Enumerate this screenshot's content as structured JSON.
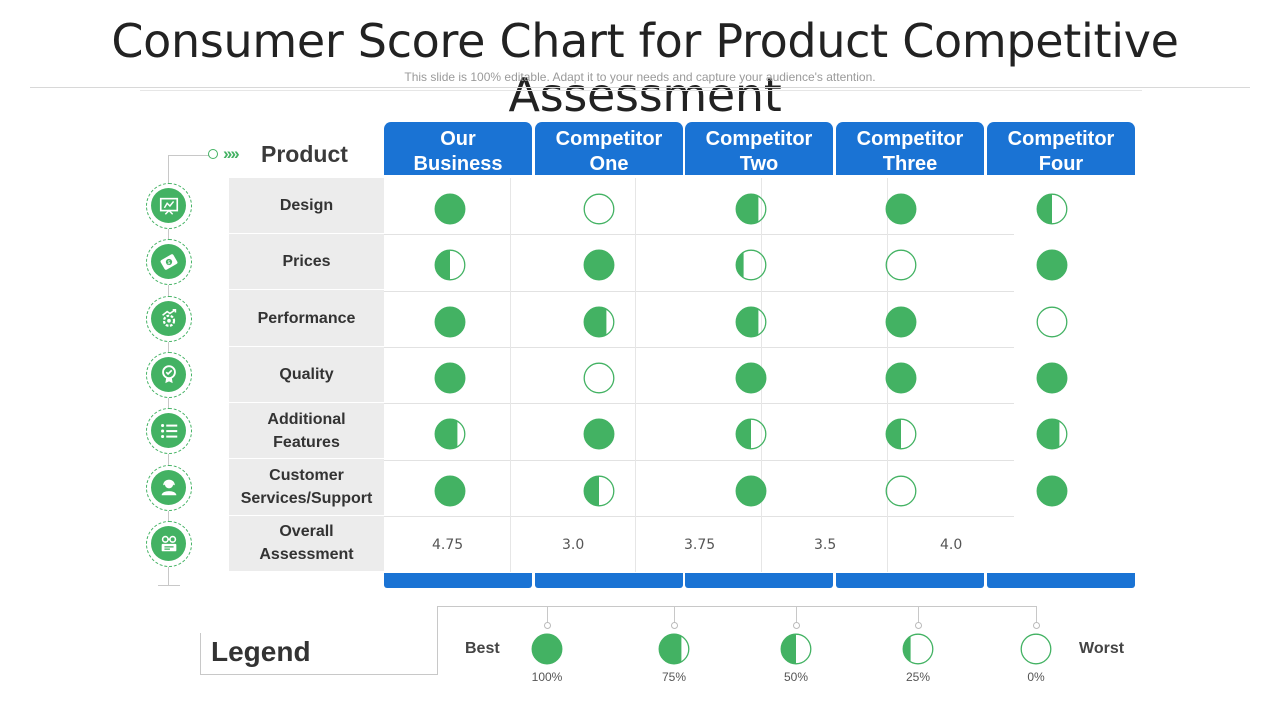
{
  "title": "Consumer Score Chart for Product Competitive Assessment",
  "subtitle": "This slide is 100% editable. Adapt it to your needs and capture your audience's attention.",
  "product_label": "Product",
  "chevrons": "››››",
  "columns": [
    {
      "line1": "Our",
      "line2": "Business"
    },
    {
      "line1": "Competitor",
      "line2": "One"
    },
    {
      "line1": "Competitor",
      "line2": "Two"
    },
    {
      "line1": "Competitor",
      "line2": "Three"
    },
    {
      "line1": "Competitor",
      "line2": "Four"
    }
  ],
  "rows": [
    {
      "label": "Design",
      "icon": "design-board-icon",
      "ratings": [
        100,
        0,
        75,
        100,
        50
      ]
    },
    {
      "label": "Prices",
      "icon": "money-icon",
      "ratings": [
        50,
        100,
        25,
        0,
        100
      ]
    },
    {
      "label": "Performance",
      "icon": "performance-gear-icon",
      "ratings": [
        100,
        75,
        75,
        100,
        0
      ]
    },
    {
      "label": "Quality",
      "icon": "quality-badge-icon",
      "ratings": [
        100,
        0,
        100,
        100,
        100
      ]
    },
    {
      "label": "Additional Features",
      "icon": "feature-list-icon",
      "ratings": [
        75,
        100,
        50,
        50,
        75
      ]
    },
    {
      "label": "Customer Services/Support",
      "icon": "support-agent-icon",
      "ratings": [
        100,
        50,
        100,
        0,
        100
      ]
    }
  ],
  "overall": {
    "label": "Overall Assessment",
    "icon": "assessment-glasses-icon",
    "scores": [
      "4.75",
      "3.0",
      "3.75",
      "3.5",
      "4.0"
    ]
  },
  "legend": {
    "title": "Legend",
    "best": "Best",
    "worst": "Worst",
    "levels": [
      {
        "value": 100,
        "label": "100%"
      },
      {
        "value": 75,
        "label": "75%"
      },
      {
        "value": 50,
        "label": "50%"
      },
      {
        "value": 25,
        "label": "25%"
      },
      {
        "value": 0,
        "label": "0%"
      }
    ]
  },
  "colors": {
    "green": "#43b263",
    "blue": "#1a73d4"
  }
}
